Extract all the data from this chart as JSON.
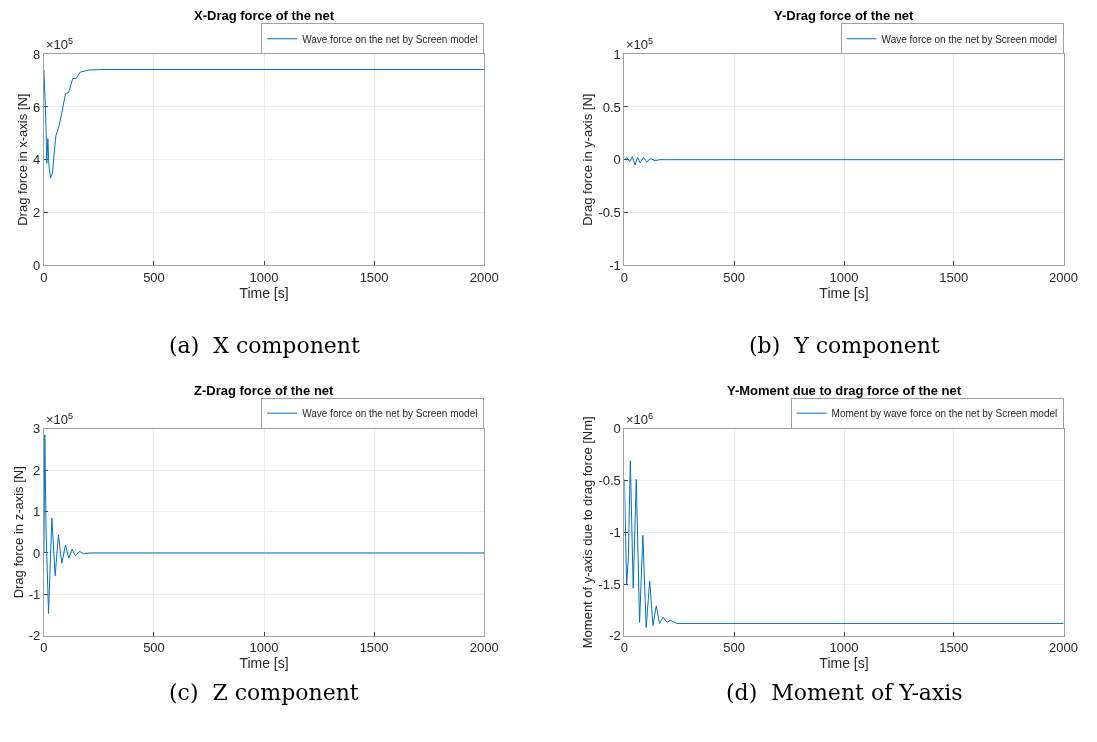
{
  "chart_data": [
    {
      "type": "line",
      "title": "X-Drag force of the net",
      "xlabel": "Time [s]",
      "ylabel": "Drag force in x-axis [N]",
      "annotations": [
        "×10$^{5}$",
        "(a)  X component"
      ],
      "series": [
        {
          "name": "Wave force on the net by Screen model",
          "color": "#0072bd",
          "x": [
            0,
            9,
            13,
            18,
            22,
            30,
            39,
            46,
            54,
            69,
            83,
            98,
            113,
            131,
            146,
            165,
            203,
            262,
            2000
          ],
          "values": [
            7.41,
            5.39,
            3.86,
            4.8,
            3.86,
            3.3,
            3.5,
            4.2,
            4.9,
            5.3,
            5.85,
            6.5,
            6.56,
            7.08,
            7.08,
            7.32,
            7.4,
            7.42,
            7.42
          ]
        }
      ],
      "xlim": [
        0,
        2000
      ],
      "xticks": [
        0,
        500,
        1000,
        1500,
        2000
      ],
      "ylim": [
        0,
        8
      ],
      "yticks": [
        0,
        2,
        4,
        6,
        8
      ],
      "grid": true,
      "legend": "top right"
    },
    {
      "type": "line",
      "title": "Y-Drag force of the net",
      "xlabel": "Time [s]",
      "ylabel": "Drag force in y-axis [N]",
      "annotations": [
        "×10$^{5}$",
        "(b)  Y component"
      ],
      "series": [
        {
          "name": "Wave force on the net by Screen model",
          "color": "#0072bd",
          "x": [
            0,
            12,
            24,
            36,
            48,
            60,
            72,
            87,
            102,
            120,
            139,
            161,
            206,
            251,
            2000
          ],
          "values": [
            0,
            0.02,
            -0.02,
            0.03,
            -0.05,
            0.02,
            -0.03,
            0.02,
            -0.02,
            0.01,
            -0.01,
            0,
            0,
            0,
            0
          ]
        }
      ],
      "xlim": [
        0,
        2000
      ],
      "xticks": [
        0,
        500,
        1000,
        1500,
        2000
      ],
      "ylim": [
        -1,
        1
      ],
      "yticks": [
        -1,
        -0.5,
        0,
        0.5,
        1
      ],
      "grid": true,
      "legend": "top right"
    },
    {
      "type": "line",
      "title": "Z-Drag force of the net",
      "xlabel": "Time [s]",
      "ylabel": "Drag force in z-axis [N]",
      "annotations": [
        "×10$^{5}$",
        "(c)  Z component"
      ],
      "series": [
        {
          "name": "Wave force on the net by Screen model",
          "color": "#0072bd",
          "x": [
            0,
            4,
            10,
            21,
            36,
            51,
            66,
            81,
            98,
            113,
            128,
            143,
            161,
            180,
            210,
            2000
          ],
          "values": [
            0,
            2.85,
            0.5,
            -1.46,
            0.84,
            -0.55,
            0.43,
            -0.25,
            0.19,
            -0.12,
            0.09,
            -0.07,
            0.04,
            -0.02,
            0,
            0
          ]
        }
      ],
      "xlim": [
        0,
        2000
      ],
      "xticks": [
        0,
        500,
        1000,
        1500,
        2000
      ],
      "ylim": [
        -2,
        3
      ],
      "yticks": [
        -2,
        -1,
        0,
        1,
        2,
        3
      ],
      "grid": true,
      "legend": "top right"
    },
    {
      "type": "line",
      "title": "Y-Moment due to drag force of the net",
      "xlabel": "Time [s]",
      "ylabel": "Moment of y-axis due to drag force [Nm]",
      "annotations": [
        "×10$^{6}$",
        "(d)  Moment of Y-axis"
      ],
      "series": [
        {
          "name": "Moment by wave force on the net by Screen model",
          "color": "#0072bd",
          "x": [
            0,
            10,
            18,
            27,
            40,
            54,
            69,
            84,
            99,
            115,
            130,
            145,
            160,
            176,
            194,
            209,
            239,
            2000
          ],
          "values": [
            -0.49,
            -1.51,
            -1.24,
            -0.31,
            -1.54,
            -0.49,
            -1.87,
            -1.03,
            -1.92,
            -1.47,
            -1.9,
            -1.71,
            -1.88,
            -1.82,
            -1.87,
            -1.85,
            -1.88,
            -1.88
          ]
        }
      ],
      "xlim": [
        0,
        2000
      ],
      "xticks": [
        0,
        500,
        1000,
        1500,
        2000
      ],
      "ylim": [
        -2,
        0
      ],
      "yticks": [
        -2,
        -1.5,
        -1,
        -0.5,
        0
      ],
      "grid": true,
      "legend": "top right"
    }
  ]
}
